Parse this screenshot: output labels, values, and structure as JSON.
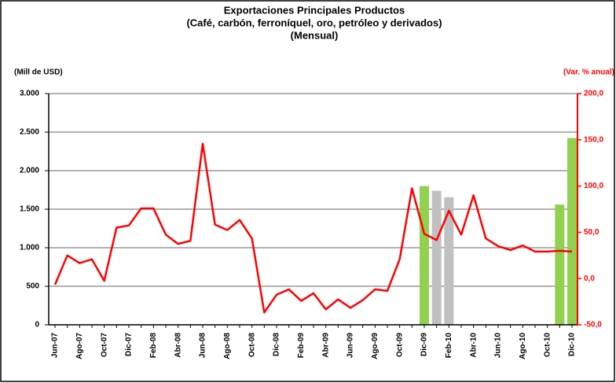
{
  "chart_data": {
    "type": "line",
    "title": [
      "Exportaciones Principales Productos",
      "(Café, carbón, ferroníquel, oro, petróleo y derivados)",
      "(Mensual)"
    ],
    "y_label": "(Mill de USD)",
    "y2_label": "(Var. % anual)",
    "categories": [
      "Jun-07",
      null,
      "Ago-07",
      null,
      "Oct-07",
      null,
      "Dic-07",
      null,
      "Feb-08",
      null,
      "Abr-08",
      null,
      "Jun-08",
      null,
      "Ago-08",
      null,
      "Oct-08",
      null,
      "Dic-08",
      null,
      "Feb-09",
      null,
      "Abr-09",
      null,
      "Jun-09",
      null,
      "Ago-09",
      null,
      "Oct-09",
      null,
      "Dic-09",
      null,
      "Feb-10",
      null,
      "Abr-10",
      null,
      "Jun-10",
      null,
      "Ago-10",
      null,
      "Oct-10",
      null,
      "Dic-10"
    ],
    "series": [
      {
        "type": "line",
        "color": "#ff0000",
        "values": [
          520,
          900,
          800,
          850,
          570,
          1260,
          1290,
          1510,
          1510,
          1170,
          1050,
          1090,
          2350,
          1300,
          1230,
          1360,
          1120,
          160,
          390,
          460,
          310,
          410,
          200,
          330,
          220,
          320,
          460,
          440,
          850,
          1770,
          1180,
          1100,
          1480,
          1170,
          1680,
          1120,
          1020,
          970,
          1030,
          950,
          950,
          960,
          950
        ]
      },
      {
        "type": "bar",
        "axis": "y2",
        "color": "#92d050",
        "values": [
          null,
          null,
          null,
          null,
          null,
          null,
          null,
          null,
          null,
          null,
          null,
          null,
          null,
          null,
          null,
          null,
          null,
          null,
          null,
          null,
          null,
          null,
          null,
          null,
          null,
          null,
          null,
          null,
          null,
          null,
          100,
          null,
          null,
          null,
          null,
          null,
          null,
          null,
          null,
          null,
          null,
          80,
          152
        ]
      },
      {
        "type": "bar",
        "axis": "y2",
        "color": "#c0c0c0",
        "values": [
          null,
          null,
          null,
          null,
          null,
          null,
          null,
          null,
          null,
          null,
          null,
          null,
          null,
          null,
          null,
          null,
          null,
          null,
          null,
          null,
          null,
          null,
          null,
          null,
          null,
          null,
          null,
          null,
          null,
          null,
          null,
          95,
          88,
          null,
          null,
          null,
          null,
          null,
          null,
          null,
          null,
          null,
          null
        ]
      }
    ],
    "ylim": [
      0,
      3000
    ],
    "yticks": [
      0,
      500,
      {
        "value": 1000,
        "label": "1.000"
      },
      {
        "value": 1500,
        "label": "1.500"
      },
      {
        "value": 2000,
        "label": "2.000"
      },
      {
        "value": 2500,
        "label": "2.500"
      },
      {
        "value": 3000,
        "label": "3.000"
      }
    ],
    "y2lim": [
      -50,
      200
    ],
    "y2ticks": [
      {
        "value": -50,
        "label": "-50,0"
      },
      {
        "value": 0,
        "label": "0,0"
      },
      {
        "value": 50,
        "label": "50,0"
      },
      {
        "value": 100,
        "label": "100,0"
      },
      {
        "value": 150,
        "label": "150,0"
      },
      {
        "value": 200,
        "label": "200,0"
      }
    ],
    "y2color": "#ff0000",
    "grid": true
  }
}
